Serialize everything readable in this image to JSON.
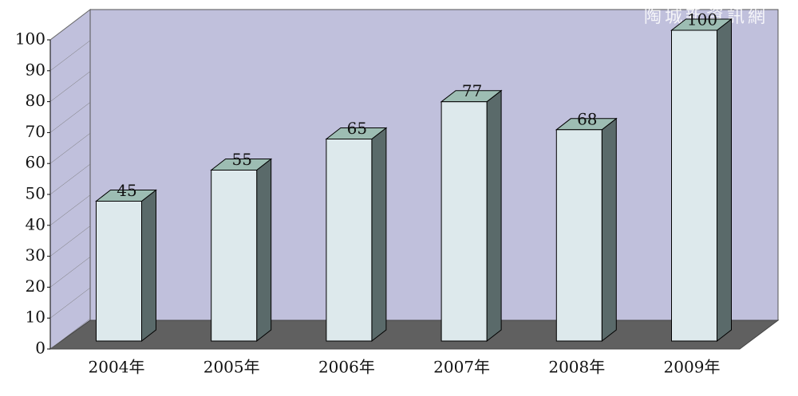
{
  "chart_data": {
    "type": "bar3d",
    "categories": [
      "2004年",
      "2005年",
      "2006年",
      "2007年",
      "2008年",
      "2009年"
    ],
    "values": [
      45,
      55,
      65,
      77,
      68,
      100
    ],
    "ylim": [
      0,
      100
    ],
    "yticks": [
      0,
      10,
      20,
      30,
      40,
      50,
      60,
      70,
      80,
      90,
      100
    ],
    "watermark": "陶城新資訊網"
  }
}
